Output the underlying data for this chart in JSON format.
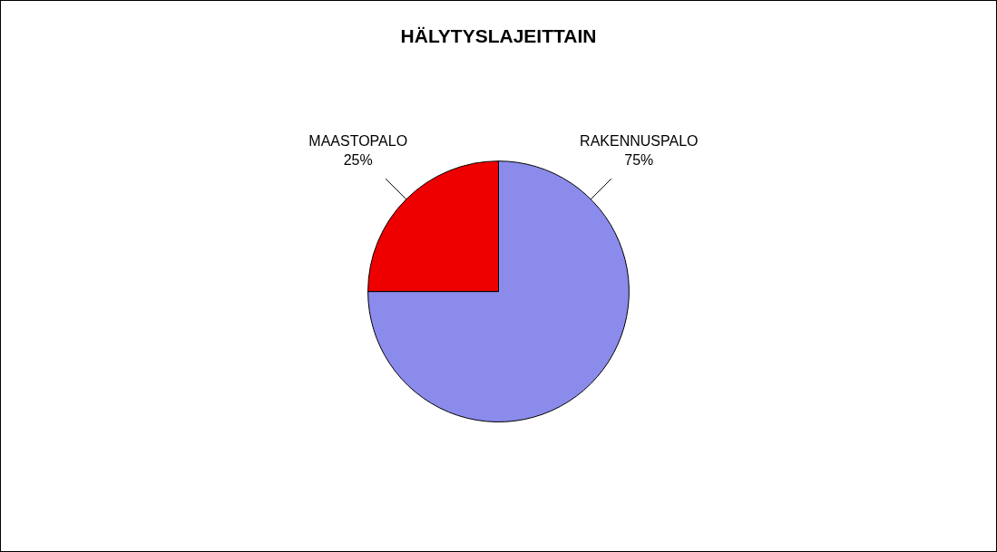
{
  "chart_data": {
    "type": "pie",
    "title": "HÄLYTYSLAJEITTAIN",
    "categories": [
      "RAKENNUSPALO",
      "MAASTOPALO"
    ],
    "values": [
      75,
      25
    ],
    "colors": [
      "#8b8bec",
      "#ee0000"
    ],
    "value_labels": [
      "75%",
      "25%"
    ]
  }
}
